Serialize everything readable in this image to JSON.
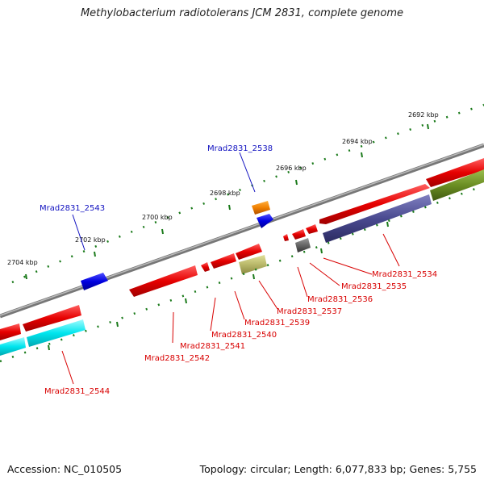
{
  "title": "Methylobacterium radiotolerans JCM 2831, complete genome",
  "footer": {
    "accession": "Accession: NC_010505",
    "summary": "Topology: circular; Length: 6,077,833 bp; Genes: 5,755"
  },
  "scale_labels": [
    "2692 kbp",
    "2694 kbp",
    "2696 kbp",
    "2698 kbp",
    "2700 kbp",
    "2702 kbp",
    "2704 kbp"
  ],
  "gene_labels": {
    "mrad2538": "Mrad2831_2538",
    "mrad2543": "Mrad2831_2543",
    "mrad2534": "Mrad2831_2534",
    "mrad2535": "Mrad2831_2535",
    "mrad2536": "Mrad2831_2536",
    "mrad2537": "Mrad2831_2537",
    "mrad2539": "Mrad2831_2539",
    "mrad2540": "Mrad2831_2540",
    "mrad2541": "Mrad2831_2541",
    "mrad2542": "Mrad2831_2542",
    "mrad2544": "Mrad2831_2544"
  },
  "colors": {
    "backbone": "#888888",
    "gene_red": "#e60000",
    "gene_blue": "#0000e0",
    "gene_orange": "#f08000",
    "gene_cyan": "#00e5ee",
    "gene_navy": "#4a4a90",
    "gene_olive": "#6b8e23",
    "gene_khaki": "#b9b86a",
    "gene_gray": "#666666",
    "ticks": "#1a7a1a",
    "label_red": "#d80000",
    "label_blue": "#1010c0"
  }
}
